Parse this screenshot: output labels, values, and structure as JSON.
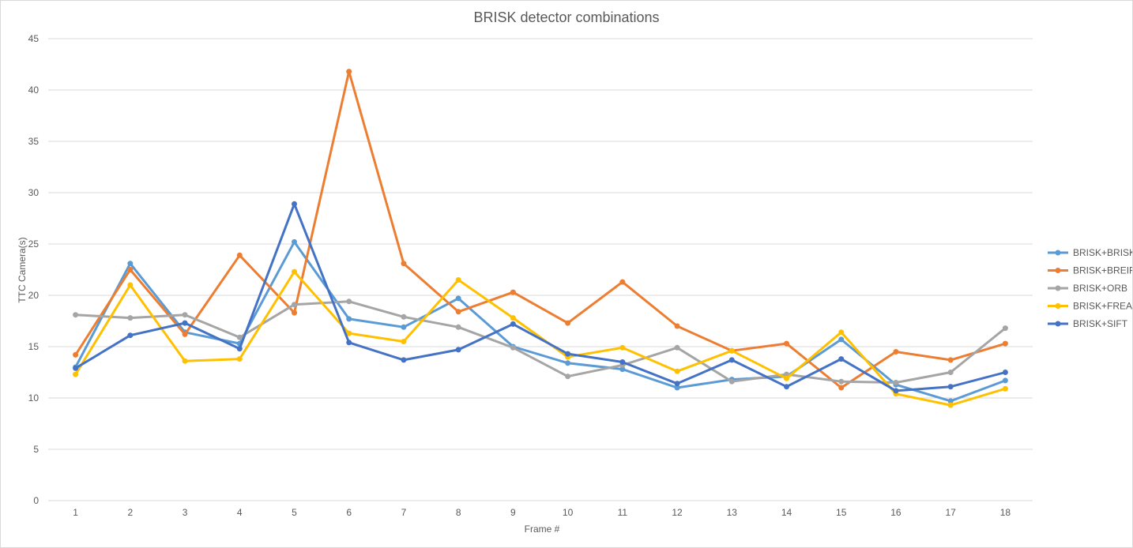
{
  "chart_data": {
    "type": "line",
    "title": "BRISK detector combinations",
    "xlabel": "Frame #",
    "ylabel": "TTC Camera(s)",
    "x": [
      1,
      2,
      3,
      4,
      5,
      6,
      7,
      8,
      9,
      10,
      11,
      12,
      13,
      14,
      15,
      16,
      17,
      18
    ],
    "ylim": [
      0,
      45
    ],
    "yticks": [
      0,
      5,
      10,
      15,
      20,
      25,
      30,
      35,
      40,
      45
    ],
    "grid": true,
    "legend_position": "right",
    "series": [
      {
        "name": "BRISK+BRISK",
        "color": "#5b9bd5",
        "values": [
          13.0,
          23.1,
          16.4,
          15.3,
          25.2,
          17.7,
          16.9,
          19.7,
          15.0,
          13.4,
          12.8,
          11.0,
          11.8,
          12.1,
          15.7,
          11.3,
          9.7,
          11.7
        ]
      },
      {
        "name": "BRISK+BREIF",
        "color": "#ed7d31",
        "values": [
          14.2,
          22.5,
          16.2,
          23.9,
          18.3,
          41.8,
          23.1,
          18.4,
          20.3,
          17.3,
          21.3,
          17.0,
          14.6,
          15.3,
          11.0,
          14.5,
          13.7,
          15.3
        ]
      },
      {
        "name": "BRISK+ORB",
        "color": "#a5a5a5",
        "values": [
          18.1,
          17.8,
          18.1,
          15.9,
          19.1,
          19.4,
          17.9,
          16.9,
          14.9,
          12.1,
          13.2,
          14.9,
          11.6,
          12.3,
          11.6,
          11.5,
          12.5,
          16.8
        ]
      },
      {
        "name": "BRISK+FREAK",
        "color": "#ffc000",
        "values": [
          12.3,
          21.0,
          13.6,
          13.8,
          22.3,
          16.3,
          15.5,
          21.5,
          17.8,
          14.0,
          14.9,
          12.6,
          14.6,
          11.9,
          16.4,
          10.4,
          9.3,
          10.9
        ]
      },
      {
        "name": "BRISK+SIFT",
        "color": "#4472c4",
        "values": [
          12.9,
          16.1,
          17.3,
          14.8,
          28.9,
          15.4,
          13.7,
          14.7,
          17.2,
          14.3,
          13.5,
          11.4,
          13.7,
          11.1,
          13.8,
          10.7,
          11.1,
          12.5
        ]
      }
    ]
  }
}
